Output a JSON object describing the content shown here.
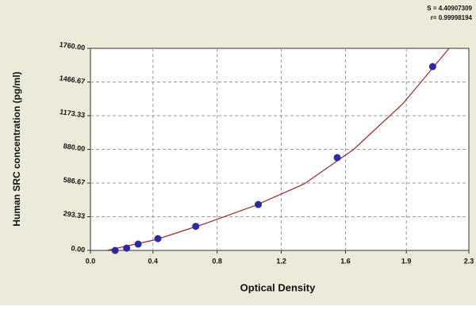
{
  "chart_data": {
    "type": "scatter",
    "annotations": [
      "S = 4.40907309",
      "r= 0.99998194"
    ],
    "x_label": "Optical Density",
    "y_label": "Human SRC concentration (pg/ml)",
    "xlim": [
      0,
      2.3
    ],
    "ylim": [
      0,
      1760
    ],
    "xticks": [
      {
        "value": 0,
        "label": "0.0"
      },
      {
        "value": 0.38,
        "label": "0.4"
      },
      {
        "value": 0.77,
        "label": "0.8"
      },
      {
        "value": 1.16,
        "label": "1.2"
      },
      {
        "value": 1.55,
        "label": "1.6"
      },
      {
        "value": 1.92,
        "label": "1.9"
      },
      {
        "value": 2.3,
        "label": "2.3"
      }
    ],
    "yticks": [
      {
        "value": 0,
        "label": "0.00"
      },
      {
        "value": 293.33,
        "label": "293.33"
      },
      {
        "value": 586.67,
        "label": "586.67"
      },
      {
        "value": 880,
        "label": "880.00"
      },
      {
        "value": 1173.33,
        "label": "1173.33"
      },
      {
        "value": 1466.67,
        "label": "1466.67"
      },
      {
        "value": 1760,
        "label": "1760.00"
      }
    ],
    "grid": true,
    "series": [
      {
        "mode": "line",
        "color": "#9b2a2a",
        "x": [
          0.1,
          0.4,
          0.7,
          1.0,
          1.3,
          1.6,
          1.9,
          2.18
        ],
        "values": [
          0,
          95,
          235,
          390,
          580,
          880,
          1280,
          1760
        ]
      },
      {
        "mode": "markers",
        "color": "#2a2aa8",
        "x": [
          0.15,
          0.22,
          0.29,
          0.41,
          0.64,
          1.02,
          1.5,
          2.08
        ],
        "values": [
          0,
          20,
          55,
          103,
          210,
          400,
          808,
          1601
        ]
      }
    ]
  }
}
